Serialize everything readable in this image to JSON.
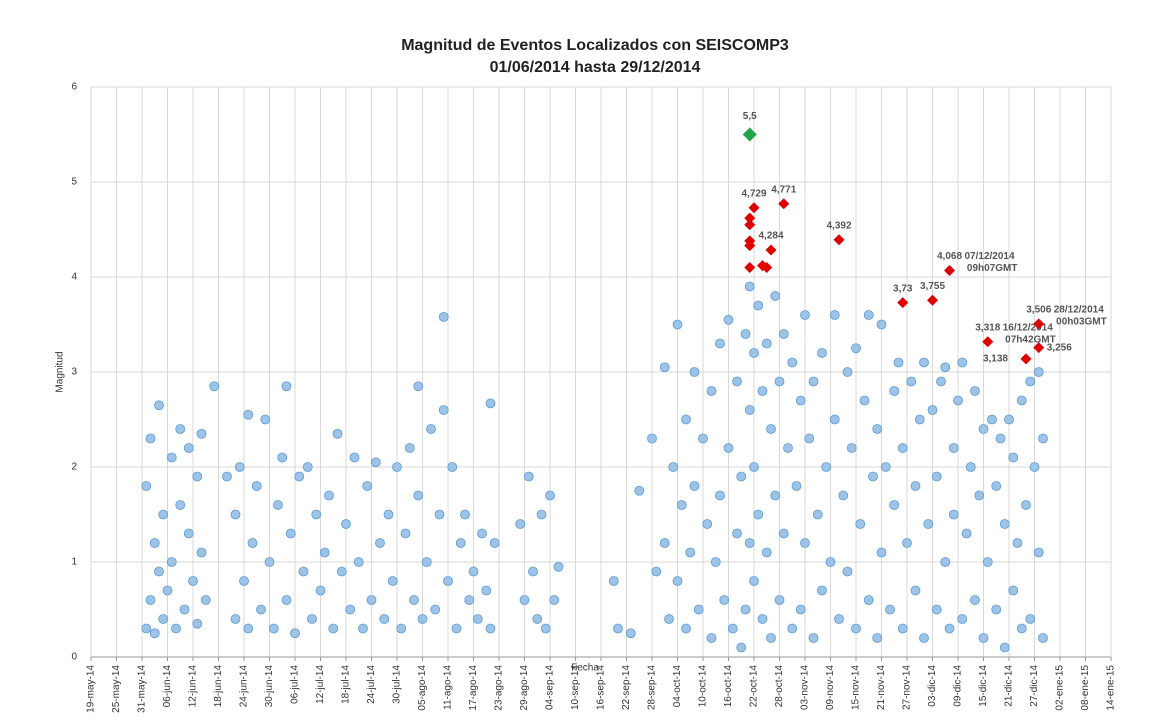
{
  "chart_data": {
    "type": "scatter",
    "title": [
      "Magnitud de Eventos Localizados con SEISCOMP3",
      "01/06/2014 hasta 29/12/2014"
    ],
    "x_label": "Fecha",
    "y_label": "Magnitud",
    "xlim": [
      "2014-05-19",
      "2015-01-14"
    ],
    "xticks": [
      {
        "value": "2014-05-19",
        "label": "19-may-14"
      },
      {
        "value": "2014-05-25",
        "label": "25-may-14"
      },
      {
        "value": "2014-05-31",
        "label": "31-may-14"
      },
      {
        "value": "2014-06-06",
        "label": "06-jun-14"
      },
      {
        "value": "2014-06-12",
        "label": "12-jun-14"
      },
      {
        "value": "2014-06-18",
        "label": "18-jun-14"
      },
      {
        "value": "2014-06-24",
        "label": "24-jun-14"
      },
      {
        "value": "2014-06-30",
        "label": "30-jun-14"
      },
      {
        "value": "2014-07-06",
        "label": "06-jul-14"
      },
      {
        "value": "2014-07-12",
        "label": "12-jul-14"
      },
      {
        "value": "2014-07-18",
        "label": "18-jul-14"
      },
      {
        "value": "2014-07-24",
        "label": "24-jul-14"
      },
      {
        "value": "2014-07-30",
        "label": "30-jul-14"
      },
      {
        "value": "2014-08-05",
        "label": "05-ago-14"
      },
      {
        "value": "2014-08-11",
        "label": "11-ago-14"
      },
      {
        "value": "2014-08-17",
        "label": "17-ago-14"
      },
      {
        "value": "2014-08-23",
        "label": "23-ago-14"
      },
      {
        "value": "2014-08-29",
        "label": "29-ago-14"
      },
      {
        "value": "2014-09-04",
        "label": "04-sep-14"
      },
      {
        "value": "2014-09-10",
        "label": "10-sep-14"
      },
      {
        "value": "2014-09-16",
        "label": "16-sep-14"
      },
      {
        "value": "2014-09-22",
        "label": "22-sep-14"
      },
      {
        "value": "2014-09-28",
        "label": "28-sep-14"
      },
      {
        "value": "2014-10-04",
        "label": "04-oct-14"
      },
      {
        "value": "2014-10-10",
        "label": "10-oct-14"
      },
      {
        "value": "2014-10-16",
        "label": "16-oct-14"
      },
      {
        "value": "2014-10-22",
        "label": "22-oct-14"
      },
      {
        "value": "2014-10-28",
        "label": "28-oct-14"
      },
      {
        "value": "2014-11-03",
        "label": "03-nov-14"
      },
      {
        "value": "2014-11-09",
        "label": "09-nov-14"
      },
      {
        "value": "2014-11-15",
        "label": "15-nov-14"
      },
      {
        "value": "2014-11-21",
        "label": "21-nov-14"
      },
      {
        "value": "2014-11-27",
        "label": "27-nov-14"
      },
      {
        "value": "2014-12-03",
        "label": "03-dic-14"
      },
      {
        "value": "2014-12-09",
        "label": "09-dic-14"
      },
      {
        "value": "2014-12-15",
        "label": "15-dic-14"
      },
      {
        "value": "2014-12-21",
        "label": "21-dic-14"
      },
      {
        "value": "2014-12-27",
        "label": "27-dic-14"
      },
      {
        "value": "2015-01-02",
        "label": "02-ene-15"
      },
      {
        "value": "2015-01-08",
        "label": "08-ene-15"
      },
      {
        "value": "2015-01-14",
        "label": "14-ene-15"
      }
    ],
    "ylim": [
      0,
      6
    ],
    "yticks": [
      0,
      1,
      2,
      3,
      4,
      5,
      6
    ],
    "grid": true,
    "series": [
      {
        "color": "#9dc3e6",
        "stroke": "#5b9bd5",
        "x": [
          "2014-06-01",
          "2014-06-01",
          "2014-06-02",
          "2014-06-02",
          "2014-06-03",
          "2014-06-03",
          "2014-06-04",
          "2014-06-04",
          "2014-06-05",
          "2014-06-05",
          "2014-06-06",
          "2014-06-07",
          "2014-06-07",
          "2014-06-08",
          "2014-06-09",
          "2014-06-09",
          "2014-06-10",
          "2014-06-11",
          "2014-06-11",
          "2014-06-12",
          "2014-06-13",
          "2014-06-13",
          "2014-06-14",
          "2014-06-14",
          "2014-06-15",
          "2014-06-17",
          "2014-06-20",
          "2014-06-22",
          "2014-06-22",
          "2014-06-23",
          "2014-06-24",
          "2014-06-25",
          "2014-06-25",
          "2014-06-26",
          "2014-06-27",
          "2014-06-28",
          "2014-06-29",
          "2014-06-30",
          "2014-07-01",
          "2014-07-02",
          "2014-07-03",
          "2014-07-04",
          "2014-07-04",
          "2014-07-05",
          "2014-07-06",
          "2014-07-07",
          "2014-07-08",
          "2014-07-09",
          "2014-07-10",
          "2014-07-11",
          "2014-07-12",
          "2014-07-13",
          "2014-07-14",
          "2014-07-15",
          "2014-07-16",
          "2014-07-17",
          "2014-07-18",
          "2014-07-19",
          "2014-07-20",
          "2014-07-21",
          "2014-07-22",
          "2014-07-23",
          "2014-07-24",
          "2014-07-25",
          "2014-07-26",
          "2014-07-27",
          "2014-07-28",
          "2014-07-29",
          "2014-07-30",
          "2014-07-31",
          "2014-08-01",
          "2014-08-02",
          "2014-08-03",
          "2014-08-04",
          "2014-08-04",
          "2014-08-05",
          "2014-08-06",
          "2014-08-07",
          "2014-08-08",
          "2014-08-09",
          "2014-08-10",
          "2014-08-10",
          "2014-08-11",
          "2014-08-12",
          "2014-08-13",
          "2014-08-14",
          "2014-08-15",
          "2014-08-16",
          "2014-08-17",
          "2014-08-18",
          "2014-08-19",
          "2014-08-20",
          "2014-08-21",
          "2014-08-21",
          "2014-08-22",
          "2014-08-28",
          "2014-08-29",
          "2014-08-30",
          "2014-08-31",
          "2014-09-01",
          "2014-09-02",
          "2014-09-03",
          "2014-09-04",
          "2014-09-05",
          "2014-09-06",
          "2014-09-19",
          "2014-09-20",
          "2014-09-23",
          "2014-09-25",
          "2014-09-28",
          "2014-09-29",
          "2014-10-01",
          "2014-10-01",
          "2014-10-02",
          "2014-10-03",
          "2014-10-04",
          "2014-10-04",
          "2014-10-05",
          "2014-10-06",
          "2014-10-06",
          "2014-10-07",
          "2014-10-08",
          "2014-10-08",
          "2014-10-09",
          "2014-10-10",
          "2014-10-11",
          "2014-10-12",
          "2014-10-12",
          "2014-10-13",
          "2014-10-14",
          "2014-10-14",
          "2014-10-15",
          "2014-10-16",
          "2014-10-16",
          "2014-10-17",
          "2014-10-18",
          "2014-10-18",
          "2014-10-19",
          "2014-10-19",
          "2014-10-20",
          "2014-10-20",
          "2014-10-21",
          "2014-10-21",
          "2014-10-21",
          "2014-10-22",
          "2014-10-22",
          "2014-10-22",
          "2014-10-23",
          "2014-10-23",
          "2014-10-24",
          "2014-10-24",
          "2014-10-25",
          "2014-10-25",
          "2014-10-26",
          "2014-10-26",
          "2014-10-27",
          "2014-10-27",
          "2014-10-28",
          "2014-10-28",
          "2014-10-29",
          "2014-10-29",
          "2014-10-30",
          "2014-10-31",
          "2014-10-31",
          "2014-11-01",
          "2014-11-02",
          "2014-11-02",
          "2014-11-03",
          "2014-11-03",
          "2014-11-04",
          "2014-11-05",
          "2014-11-05",
          "2014-11-06",
          "2014-11-07",
          "2014-11-07",
          "2014-11-08",
          "2014-11-09",
          "2014-11-10",
          "2014-11-10",
          "2014-11-11",
          "2014-11-12",
          "2014-11-13",
          "2014-11-13",
          "2014-11-14",
          "2014-11-15",
          "2014-11-15",
          "2014-11-16",
          "2014-11-17",
          "2014-11-18",
          "2014-11-18",
          "2014-11-19",
          "2014-11-20",
          "2014-11-20",
          "2014-11-21",
          "2014-11-21",
          "2014-11-22",
          "2014-11-23",
          "2014-11-24",
          "2014-11-24",
          "2014-11-25",
          "2014-11-26",
          "2014-11-26",
          "2014-11-27",
          "2014-11-28",
          "2014-11-29",
          "2014-11-29",
          "2014-11-30",
          "2014-12-01",
          "2014-12-01",
          "2014-12-02",
          "2014-12-03",
          "2014-12-04",
          "2014-12-04",
          "2014-12-05",
          "2014-12-06",
          "2014-12-06",
          "2014-12-07",
          "2014-12-08",
          "2014-12-08",
          "2014-12-09",
          "2014-12-10",
          "2014-12-10",
          "2014-12-11",
          "2014-12-12",
          "2014-12-13",
          "2014-12-13",
          "2014-12-14",
          "2014-12-15",
          "2014-12-15",
          "2014-12-16",
          "2014-12-17",
          "2014-12-18",
          "2014-12-18",
          "2014-12-19",
          "2014-12-20",
          "2014-12-20",
          "2014-12-21",
          "2014-12-22",
          "2014-12-22",
          "2014-12-23",
          "2014-12-24",
          "2014-12-24",
          "2014-12-25",
          "2014-12-26",
          "2014-12-26",
          "2014-12-27",
          "2014-12-28",
          "2014-12-28",
          "2014-12-29",
          "2014-12-29"
        ],
        "values": [
          0.3,
          1.8,
          0.6,
          2.3,
          1.2,
          0.25,
          0.9,
          2.65,
          1.5,
          0.4,
          0.7,
          2.1,
          1.0,
          0.3,
          1.6,
          2.4,
          0.5,
          1.3,
          2.2,
          0.8,
          1.9,
          0.35,
          1.1,
          2.35,
          0.6,
          2.85,
          1.9,
          0.4,
          1.5,
          2.0,
          0.8,
          2.55,
          0.3,
          1.2,
          1.8,
          0.5,
          2.5,
          1.0,
          0.3,
          1.6,
          2.1,
          2.85,
          0.6,
          1.3,
          0.25,
          1.9,
          0.9,
          2.0,
          0.4,
          1.5,
          0.7,
          1.1,
          1.7,
          0.3,
          2.35,
          0.9,
          1.4,
          0.5,
          2.1,
          1.0,
          0.3,
          1.8,
          0.6,
          2.05,
          1.2,
          0.4,
          1.5,
          0.8,
          2.0,
          0.3,
          1.3,
          2.2,
          0.6,
          2.85,
          1.7,
          0.4,
          1.0,
          2.4,
          0.5,
          1.5,
          3.58,
          2.6,
          0.8,
          2.0,
          0.3,
          1.2,
          1.5,
          0.6,
          0.9,
          0.4,
          1.3,
          0.7,
          2.67,
          0.3,
          1.2,
          1.4,
          0.6,
          1.9,
          0.9,
          0.4,
          1.5,
          0.3,
          1.7,
          0.6,
          0.95,
          0.8,
          0.3,
          0.25,
          1.75,
          2.3,
          0.9,
          3.05,
          1.2,
          0.4,
          2.0,
          3.5,
          0.8,
          1.6,
          2.5,
          0.3,
          1.1,
          3.0,
          1.8,
          0.5,
          2.3,
          1.4,
          0.2,
          2.8,
          1.0,
          3.3,
          1.7,
          0.6,
          2.2,
          3.55,
          0.3,
          1.3,
          2.9,
          0.1,
          1.9,
          0.5,
          3.4,
          3.9,
          2.6,
          1.2,
          3.2,
          0.8,
          2.0,
          3.7,
          1.5,
          2.8,
          0.4,
          3.3,
          1.1,
          2.4,
          0.2,
          3.8,
          1.7,
          2.9,
          0.6,
          3.4,
          1.3,
          2.2,
          0.3,
          3.1,
          1.8,
          2.7,
          0.5,
          3.6,
          1.2,
          2.3,
          0.2,
          2.9,
          1.5,
          3.2,
          0.7,
          2.0,
          1.0,
          3.6,
          2.5,
          0.4,
          1.7,
          3.0,
          0.9,
          2.2,
          3.25,
          0.3,
          1.4,
          2.7,
          0.6,
          3.6,
          1.9,
          0.2,
          2.4,
          3.5,
          1.1,
          2.0,
          0.5,
          2.8,
          1.6,
          3.1,
          0.3,
          2.2,
          1.2,
          2.9,
          0.7,
          1.8,
          2.5,
          0.2,
          3.1,
          1.4,
          2.6,
          0.5,
          1.9,
          2.9,
          1.0,
          3.05,
          0.3,
          2.2,
          1.5,
          2.7,
          0.4,
          3.1,
          1.3,
          2.0,
          0.6,
          2.8,
          1.7,
          0.2,
          2.4,
          1.0,
          2.5,
          0.5,
          1.8,
          2.3,
          0.1,
          1.4,
          2.5,
          0.7,
          2.1,
          1.2,
          0.3,
          2.7,
          1.6,
          2.9,
          0.4,
          2.0,
          3.0,
          1.1,
          0.2,
          2.3
        ]
      },
      {
        "color": "#e00000",
        "x": [
          "2014-10-21",
          "2014-10-21",
          "2014-10-21",
          "2014-10-21",
          "2014-10-21",
          "2014-10-22",
          "2014-10-24",
          "2014-10-25",
          "2014-10-26",
          "2014-10-29",
          "2014-11-11",
          "2014-11-26",
          "2014-12-03",
          "2014-12-07",
          "2014-12-16",
          "2014-12-25",
          "2014-12-28",
          "2014-12-28"
        ],
        "values": [
          4.1,
          4.33,
          4.38,
          4.55,
          4.62,
          4.729,
          4.12,
          4.1,
          4.284,
          4.771,
          4.392,
          3.73,
          3.755,
          4.068,
          3.318,
          3.138,
          3.506,
          3.256
        ],
        "value_labels": [
          null,
          null,
          null,
          null,
          null,
          "4,729",
          null,
          null,
          "4,284",
          "4,771",
          "4,392",
          "3,73",
          "3,755",
          "4,068",
          "3,318",
          "3,138",
          "3,506",
          "3,256"
        ]
      },
      {
        "color": "#1fa64a",
        "x": [
          "2014-10-21"
        ],
        "values": [
          5.5
        ],
        "value_labels": [
          "5,5"
        ]
      }
    ],
    "annotations": [
      [
        "07/12/2014",
        "09h07GMT"
      ],
      [
        "16/12/2014",
        "07h42GMT"
      ],
      [
        "28/12/2014",
        "00h03GMT"
      ]
    ]
  }
}
